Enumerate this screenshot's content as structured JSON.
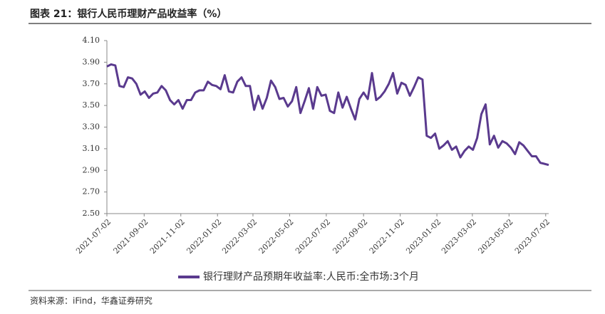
{
  "chart_data": {
    "type": "line",
    "title": "图表 21：银行人民币理财产品收益率（%）",
    "source": "资料来源：iFind，华鑫证券研究",
    "x": [
      "2021-07-02",
      "2021-07-09",
      "2021-07-16",
      "2021-07-23",
      "2021-07-30",
      "2021-08-06",
      "2021-08-13",
      "2021-08-20",
      "2021-08-27",
      "2021-09-03",
      "2021-09-10",
      "2021-09-17",
      "2021-09-24",
      "2021-10-01",
      "2021-10-08",
      "2021-10-15",
      "2021-10-22",
      "2021-10-29",
      "2021-11-05",
      "2021-11-12",
      "2021-11-19",
      "2021-11-26",
      "2021-12-03",
      "2021-12-10",
      "2021-12-17",
      "2021-12-24",
      "2021-12-31",
      "2022-01-07",
      "2022-01-14",
      "2022-01-21",
      "2022-01-28",
      "2022-02-04",
      "2022-02-11",
      "2022-02-18",
      "2022-02-25",
      "2022-03-04",
      "2022-03-11",
      "2022-03-18",
      "2022-03-25",
      "2022-04-01",
      "2022-04-08",
      "2022-04-15",
      "2022-04-22",
      "2022-04-29",
      "2022-05-06",
      "2022-05-13",
      "2022-05-20",
      "2022-05-27",
      "2022-06-03",
      "2022-06-10",
      "2022-06-17",
      "2022-06-24",
      "2022-07-01",
      "2022-07-08",
      "2022-07-15",
      "2022-07-22",
      "2022-07-29",
      "2022-08-05",
      "2022-08-12",
      "2022-08-19",
      "2022-08-26",
      "2022-09-02",
      "2022-09-09",
      "2022-09-16",
      "2022-09-23",
      "2022-09-30",
      "2022-10-07",
      "2022-10-14",
      "2022-10-21",
      "2022-10-28",
      "2022-11-04",
      "2022-11-11",
      "2022-11-18",
      "2022-11-25",
      "2022-12-02",
      "2022-12-09",
      "2022-12-16",
      "2022-12-23",
      "2022-12-30",
      "2023-01-06",
      "2023-01-13",
      "2023-01-20",
      "2023-01-27",
      "2023-02-03",
      "2023-02-10",
      "2023-02-17",
      "2023-02-24",
      "2023-03-03",
      "2023-03-10",
      "2023-03-17",
      "2023-03-24",
      "2023-03-31",
      "2023-04-07",
      "2023-04-14",
      "2023-04-21",
      "2023-04-28",
      "2023-05-05",
      "2023-05-12",
      "2023-05-19",
      "2023-05-26",
      "2023-06-02",
      "2023-06-09",
      "2023-06-16",
      "2023-06-23",
      "2023-06-30",
      "2023-07-07"
    ],
    "series": [
      {
        "name": "银行理财产品预期年收益率:人民币:全市场:3个月",
        "color": "#5a3a8e",
        "values": [
          3.86,
          3.88,
          3.87,
          3.68,
          3.67,
          3.76,
          3.75,
          3.7,
          3.6,
          3.63,
          3.57,
          3.61,
          3.62,
          3.68,
          3.64,
          3.55,
          3.51,
          3.55,
          3.47,
          3.55,
          3.55,
          3.62,
          3.64,
          3.64,
          3.72,
          3.69,
          3.68,
          3.65,
          3.78,
          3.63,
          3.62,
          3.72,
          3.76,
          3.68,
          3.68,
          3.46,
          3.59,
          3.47,
          3.57,
          3.73,
          3.67,
          3.56,
          3.57,
          3.49,
          3.54,
          3.67,
          3.43,
          3.54,
          3.66,
          3.47,
          3.67,
          3.59,
          3.6,
          3.45,
          3.43,
          3.62,
          3.48,
          3.58,
          3.47,
          3.37,
          3.56,
          3.62,
          3.56,
          3.8,
          3.55,
          3.58,
          3.63,
          3.7,
          3.8,
          3.61,
          3.71,
          3.69,
          3.59,
          3.67,
          3.76,
          3.74,
          3.22,
          3.2,
          3.24,
          3.1,
          3.13,
          3.17,
          3.09,
          3.12,
          3.02,
          3.08,
          3.12,
          3.09,
          3.2,
          3.42,
          3.51,
          3.14,
          3.22,
          3.11,
          3.17,
          3.15,
          3.11,
          3.05,
          3.16,
          3.13,
          3.08,
          3.03,
          3.03,
          2.97,
          2.96,
          2.95
        ]
      }
    ],
    "xlim": [
      "2021-07-02",
      "2023-07-07"
    ],
    "xticks": [
      "2021-07-02",
      "2021-09-02",
      "2021-11-02",
      "2022-01-02",
      "2022-03-02",
      "2022-05-02",
      "2022-07-02",
      "2022-09-02",
      "2022-11-02",
      "2023-01-02",
      "2023-03-02",
      "2023-05-02",
      "2023-07-02"
    ],
    "ylim": [
      2.5,
      4.1
    ],
    "yticks": [
      {
        "value": 2.5,
        "label": "2.50"
      },
      {
        "value": 2.7,
        "label": "2.70"
      },
      {
        "value": 2.9,
        "label": "2.90"
      },
      {
        "value": 3.1,
        "label": "3.10"
      },
      {
        "value": 3.3,
        "label": "3.30"
      },
      {
        "value": 3.5,
        "label": "3.50"
      },
      {
        "value": 3.7,
        "label": "3.70"
      },
      {
        "value": 3.9,
        "label": "3.90"
      },
      {
        "value": 4.1,
        "label": "4.10"
      }
    ],
    "grid": false
  }
}
